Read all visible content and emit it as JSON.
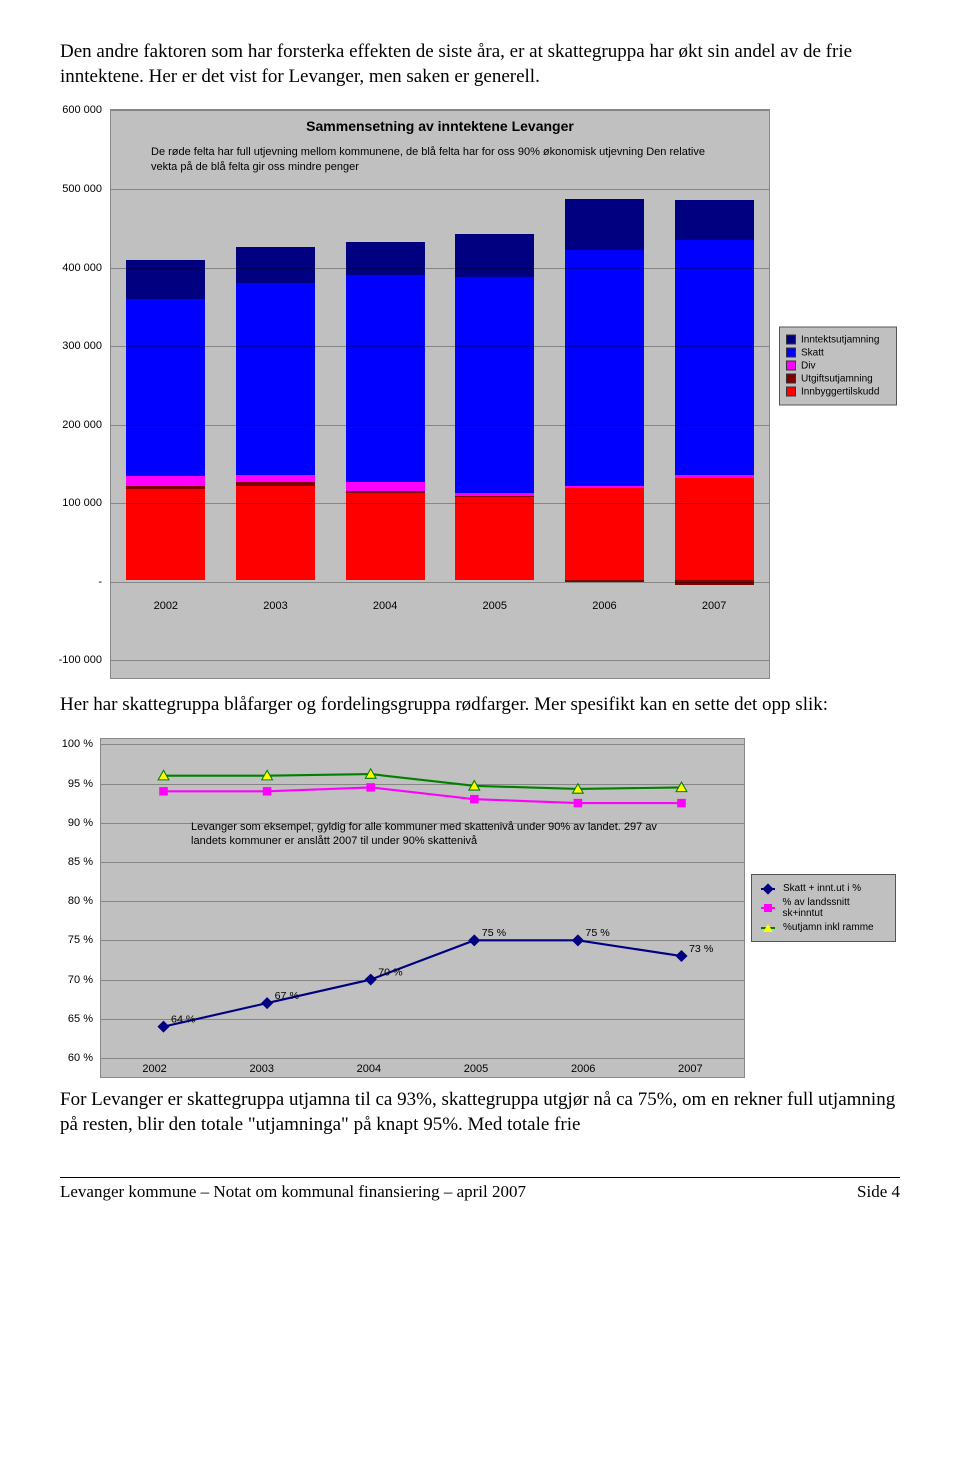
{
  "intro_para": "Den andre faktoren som har forsterka effekten de siste åra, er at skattegruppa har økt sin andel av de frie inntektene. Her er det vist for Levanger, men saken er generell.",
  "chart1": {
    "type": "bar",
    "title": "Sammensetning av inntektene Levanger",
    "note": "De røde felta har full utjevning mellom kommunene, de blå felta har for oss 90% økonomisk utjevning Den relative vekta på de blå felta gir oss mindre penger",
    "categories": [
      "2002",
      "2003",
      "2004",
      "2005",
      "2006",
      "2007"
    ],
    "y_min": -100000,
    "y_max": 600000,
    "y_step": 100000,
    "y_ticks": [
      "600 000",
      "500 000",
      "400 000",
      "300 000",
      "200 000",
      "100 000",
      "-",
      "-100 000"
    ],
    "background_color": "#c0c0c0",
    "grid_color": "#000000",
    "bar_width_pct": 12,
    "legend": [
      {
        "label": "Inntektsutjamning",
        "color": "#000080"
      },
      {
        "label": "Skatt",
        "color": "#0000ff"
      },
      {
        "label": "Div",
        "color": "#ff00ff"
      },
      {
        "label": "Utgiftsutjamning",
        "color": "#800000"
      },
      {
        "label": "Innbyggertilskudd",
        "color": "#ff0000"
      }
    ],
    "series": [
      {
        "year": "2002",
        "innbygger": 115000,
        "utgifts": 5000,
        "div": 12000,
        "skatt": 225000,
        "inntekts": 50000,
        "neg_utgifts": 0
      },
      {
        "year": "2003",
        "innbygger": 120000,
        "utgifts": 5000,
        "div": 8000,
        "skatt": 245000,
        "inntekts": 45000,
        "neg_utgifts": 0
      },
      {
        "year": "2004",
        "innbygger": 110000,
        "utgifts": 3000,
        "div": 12000,
        "skatt": 263000,
        "inntekts": 42000,
        "neg_utgifts": 0
      },
      {
        "year": "2005",
        "innbygger": 105000,
        "utgifts": 2000,
        "div": 3000,
        "skatt": 275000,
        "inntekts": 55000,
        "neg_utgifts": 0
      },
      {
        "year": "2006",
        "innbygger": 117000,
        "utgifts": 0,
        "div": 3000,
        "skatt": 300000,
        "inntekts": 65000,
        "neg_utgifts": 3000
      },
      {
        "year": "2007",
        "innbygger": 130000,
        "utgifts": 0,
        "div": 3000,
        "skatt": 300000,
        "inntekts": 50000,
        "neg_utgifts": 6000
      }
    ]
  },
  "mid_para": "Her har skattegruppa blåfarger og fordelingsgruppa rødfarger. Mer spesifikt kan en sette det opp slik:",
  "chart2": {
    "type": "line",
    "categories": [
      "2002",
      "2003",
      "2004",
      "2005",
      "2006",
      "2007"
    ],
    "y_min": 60,
    "y_max": 100,
    "y_step": 5,
    "y_ticks": [
      "100 %",
      "95 %",
      "90 %",
      "85 %",
      "80 %",
      "75 %",
      "70 %",
      "65 %",
      "60 %"
    ],
    "background_color": "#c0c0c0",
    "note": "Levanger som eksempel, gyldig for alle kommuner med skattenivå under 90% av landet. 297 av landets kommuner er anslått 2007 til under 90% skattenivå",
    "legend": [
      {
        "label": "Skatt + innt.ut i %",
        "color": "#000080",
        "marker": "diamond"
      },
      {
        "label": "% av landssnitt sk+inntut",
        "color": "#ff00ff",
        "marker": "square"
      },
      {
        "label": "%utjamn inkl ramme",
        "color": "#008000",
        "marker": "triangle"
      }
    ],
    "series": {
      "s1": {
        "color": "#000080",
        "marker": "diamond",
        "values": [
          64,
          67,
          70,
          75,
          75,
          73
        ],
        "show_labels": true,
        "label_suffix": " %"
      },
      "s2": {
        "color": "#ff00ff",
        "marker": "square",
        "values": [
          94,
          94,
          94.5,
          93,
          92.5,
          92.5
        ],
        "show_labels": false
      },
      "s3": {
        "color": "#008000",
        "marker": "triangle",
        "fill": "#ffff00",
        "values": [
          96,
          96,
          96.2,
          94.7,
          94.3,
          94.5
        ],
        "show_labels": false
      }
    }
  },
  "closing_para": "For Levanger er skattegruppa utjamna til ca 93%, skattegruppa utgjør nå ca 75%, om en rekner full utjamning på resten, blir den totale \"utjamninga\" på knapt 95%. Med totale frie",
  "footer": {
    "left": "Levanger kommune – Notat om kommunal finansiering – april 2007",
    "right": "Side 4"
  }
}
